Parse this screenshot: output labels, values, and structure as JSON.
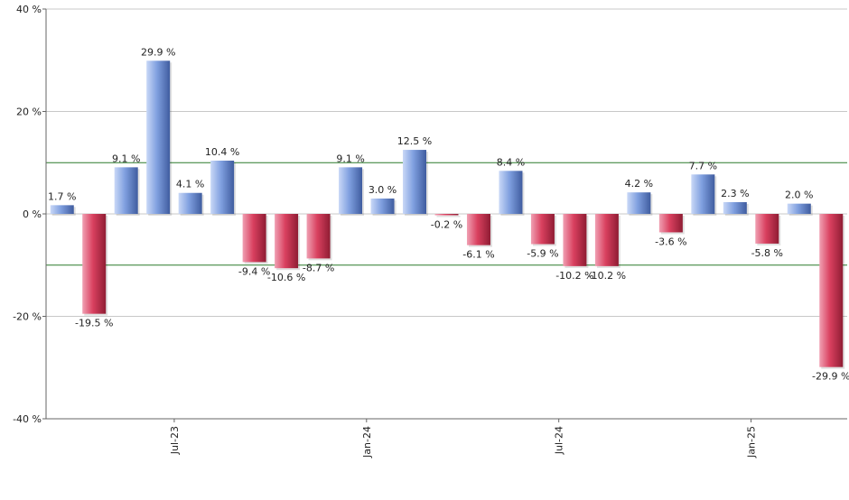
{
  "chart_data": {
    "type": "bar",
    "title": "",
    "xlabel": "",
    "ylabel": "",
    "ylim": [
      -40,
      40
    ],
    "grid": true,
    "legend": "none",
    "y_ticks": [
      {
        "value": 40,
        "label": "40 %"
      },
      {
        "value": 20,
        "label": "20 %"
      },
      {
        "value": 0,
        "label": "0 %"
      },
      {
        "value": -20,
        "label": "-20 %"
      },
      {
        "value": -40,
        "label": "-40 %"
      }
    ],
    "reference_lines": [
      10,
      -10
    ],
    "x_ticks": [
      {
        "at_bar": 3.5,
        "label": "Jul-23"
      },
      {
        "at_bar": 9.5,
        "label": "Jan-24"
      },
      {
        "at_bar": 15.5,
        "label": "Jul-24"
      },
      {
        "at_bar": 21.5,
        "label": "Jan-25"
      }
    ],
    "values": [
      1.7,
      -19.5,
      9.1,
      29.9,
      4.1,
      10.4,
      -9.4,
      -10.6,
      -8.7,
      9.1,
      3.0,
      12.5,
      -0.2,
      -6.1,
      8.4,
      -5.9,
      -10.2,
      -10.2,
      4.2,
      -3.6,
      7.7,
      2.3,
      -5.8,
      2.0,
      -29.9
    ],
    "value_labels": [
      "1.7 %",
      "-19.5 %",
      "9.1 %",
      "29.9 %",
      "4.1 %",
      "10.4 %",
      "-9.4 %",
      "-10.6 %",
      "-8.7 %",
      "9.1 %",
      "3.0 %",
      "12.5 %",
      "-0.2 %",
      "-6.1 %",
      "8.4 %",
      "-5.9 %",
      "-10.2 %",
      "-10.2 %",
      "4.2 %",
      "-3.6 %",
      "7.7 %",
      "2.3 %",
      "-5.8 %",
      "2.0 %",
      "-29.9 %"
    ],
    "colors": {
      "positive": "#7f9fdf",
      "positive_light": "#c9d8f7",
      "positive_dark": "#3f5c9f",
      "negative": "#d9405f",
      "negative_light": "#f0a0b3",
      "negative_dark": "#8f1c33",
      "gridline": "#c8c8c8",
      "reference_line": "#2a7a2a",
      "axis": "#666666"
    }
  }
}
